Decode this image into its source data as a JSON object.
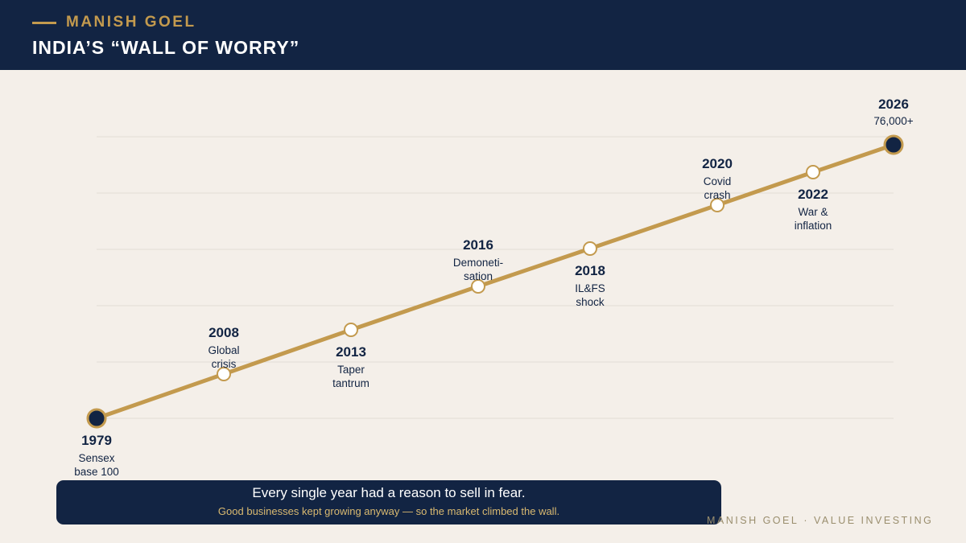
{
  "header": {
    "brand": "MANISH GOEL",
    "title": "INDIA’S “WALL OF WORRY”"
  },
  "callout": {
    "main": "Every single year had a reason to sell in fear.",
    "sub": "Good businesses kept growing anyway — so the market climbed the wall."
  },
  "footer": {
    "left": "MANISH GOEL",
    "separator": "·",
    "right": "VALUE INVESTING"
  },
  "colors": {
    "navy": "#122443",
    "gold": "#C39A4E",
    "background": "#F4EFE9",
    "gridline": "#E2DDD5"
  },
  "chart_data": {
    "type": "line",
    "title": "INDIA’S “WALL OF WORRY”",
    "xlabel": "",
    "ylabel": "",
    "grid": true,
    "points": [
      {
        "year": "1979",
        "label": [
          "Sensex",
          "base 100"
        ],
        "label_side": "below",
        "endpoint": true
      },
      {
        "year": "2008",
        "label": [
          "Global",
          "crisis"
        ],
        "label_side": "above",
        "endpoint": false
      },
      {
        "year": "2013",
        "label": [
          "Taper",
          "tantrum"
        ],
        "label_side": "below",
        "endpoint": false
      },
      {
        "year": "2016",
        "label": [
          "Demoneti-",
          "sation"
        ],
        "label_side": "above",
        "endpoint": false
      },
      {
        "year": "2018",
        "label": [
          "IL&FS",
          "shock"
        ],
        "label_side": "below",
        "endpoint": false
      },
      {
        "year": "2020",
        "label": [
          "Covid",
          "crash"
        ],
        "label_side": "above",
        "endpoint": false
      },
      {
        "year": "2022",
        "label": [
          "War &",
          "inflation"
        ],
        "label_side": "below",
        "endpoint": false
      },
      {
        "year": "2026",
        "label": [
          "76,000+"
        ],
        "label_side": "above",
        "endpoint": true
      }
    ]
  }
}
